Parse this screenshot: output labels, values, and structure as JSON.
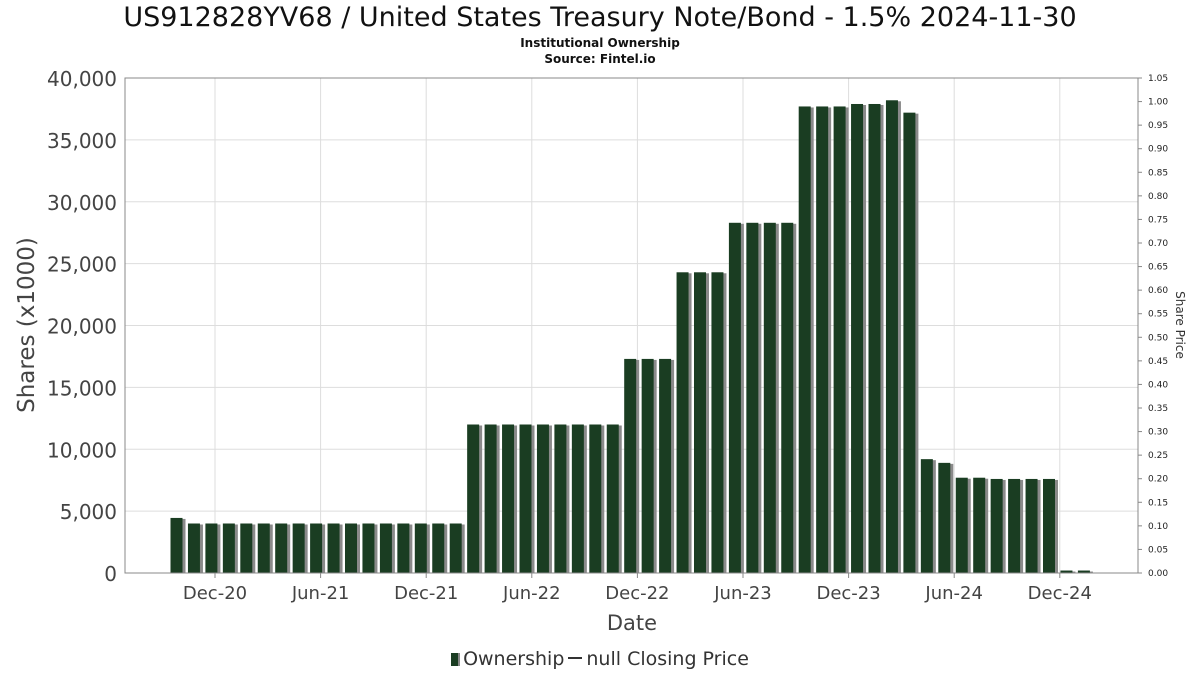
{
  "title": "US912828YV68 / United States Treasury Note/Bond - 1.5% 2024-11-30",
  "subtitle": "Institutional Ownership",
  "source": "Source: Fintel.io",
  "legend": {
    "ownership_label": "Ownership",
    "price_label": "null Closing Price"
  },
  "colors": {
    "bar": "#1a3d22",
    "bar_shadow": "#8a8a8a",
    "grid": "#dddddd",
    "axis": "#888888"
  },
  "chart_data": {
    "type": "bar",
    "xlabel": "Date",
    "ylabel": "Shares (x1000)",
    "y2label": "Share Price",
    "ylim": [
      0,
      40000
    ],
    "y2lim": [
      0,
      1.05
    ],
    "yticks": [
      0,
      5000,
      10000,
      15000,
      20000,
      25000,
      30000,
      35000,
      40000
    ],
    "ytick_labels": [
      "0",
      "5,000",
      "10,000",
      "15,000",
      "20,000",
      "25,000",
      "30,000",
      "35,000",
      "40,000"
    ],
    "y2tick_labels": [
      "0.00",
      "0.05",
      "0.10",
      "0.15",
      "0.20",
      "0.25",
      "0.30",
      "0.35",
      "0.40",
      "0.45",
      "0.50",
      "0.55",
      "0.60",
      "0.65",
      "0.70",
      "0.75",
      "0.80",
      "0.85",
      "0.90",
      "0.95",
      "1.00",
      "1.05"
    ],
    "xtick_labels": [
      "Dec-20",
      "Jun-21",
      "Dec-21",
      "Jun-22",
      "Dec-22",
      "Jun-23",
      "Dec-23",
      "Jun-24",
      "Dec-24"
    ],
    "grid": true,
    "legend_position": "bottom",
    "series": [
      {
        "name": "Ownership",
        "values": [
          4450,
          4000,
          4000,
          4000,
          4000,
          4000,
          4000,
          4000,
          4000,
          4000,
          4000,
          4000,
          4000,
          4000,
          4000,
          4000,
          4000,
          12000,
          12000,
          12000,
          12000,
          12000,
          12000,
          12000,
          12000,
          12000,
          17300,
          17300,
          17300,
          24300,
          24300,
          24300,
          28300,
          28300,
          28300,
          28300,
          37700,
          37700,
          37700,
          37900,
          37900,
          38200,
          37200,
          9200,
          8900,
          7700,
          7700,
          7600,
          7600,
          7600,
          7600,
          200,
          200
        ]
      }
    ]
  }
}
